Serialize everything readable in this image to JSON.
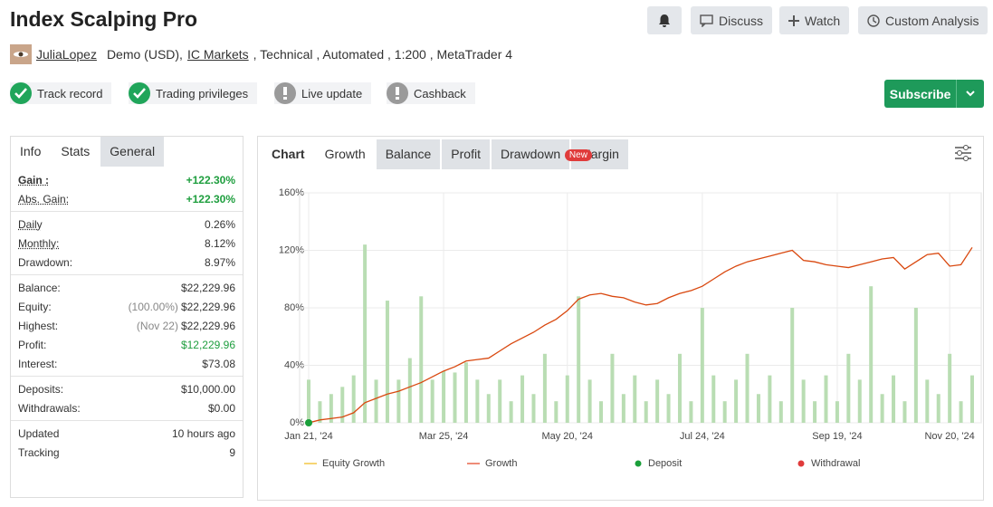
{
  "header": {
    "title": "Index Scalping Pro",
    "buttons": [
      "Discuss",
      "Watch",
      "Custom Analysis"
    ],
    "user": "JuliaLopez",
    "account": "Demo (USD),",
    "broker": "IC Markets",
    "details": ", Technical , Automated , 1:200 , MetaTrader 4"
  },
  "badges": [
    {
      "label": "Track record",
      "ok": true
    },
    {
      "label": "Trading privileges",
      "ok": true
    },
    {
      "label": "Live update",
      "ok": false
    },
    {
      "label": "Cashback",
      "ok": false
    }
  ],
  "subscribe": "Subscribe",
  "stats": {
    "tabs": [
      "Info",
      "Stats",
      "General"
    ],
    "groups": [
      [
        {
          "label": "Gain :",
          "value": "+122.30%",
          "color": "#1e9e3e",
          "strong": true
        },
        {
          "label": "Abs. Gain:",
          "value": "+122.30%",
          "color": "#1e9e3e"
        }
      ],
      [
        {
          "label": "Daily",
          "value": "0.26%"
        },
        {
          "label": "Monthly:",
          "value": "8.12%"
        },
        {
          "label": "Drawdown:",
          "value": "8.97%"
        }
      ],
      [
        {
          "label": "Balance:",
          "value": "$22,229.96"
        },
        {
          "label": "Equity:",
          "note": "(100.00%)",
          "value": "$22,229.96"
        },
        {
          "label": "Highest:",
          "note": "(Nov 22)",
          "value": "$22,229.96"
        },
        {
          "label": "Profit:",
          "value": "$12,229.96",
          "color": "#1e9e3e"
        },
        {
          "label": "Interest:",
          "value": "$73.08"
        }
      ],
      [
        {
          "label": "Deposits:",
          "value": "$10,000.00"
        },
        {
          "label": "Withdrawals:",
          "value": "$0.00"
        }
      ],
      [
        {
          "label": "Updated",
          "value": "10 hours ago"
        },
        {
          "label": "Tracking",
          "value": "9"
        }
      ]
    ]
  },
  "chart_tabs": {
    "tabs": [
      "Chart",
      "Growth",
      "Balance",
      "Profit",
      "Drawdown",
      "Margin"
    ],
    "badge": "New"
  },
  "chart_data": {
    "type": "line",
    "categories": [
      "Jan 21, '24",
      null,
      null,
      null,
      null,
      null,
      null,
      null,
      null,
      null,
      null,
      null,
      "Mar 25, '24",
      null,
      null,
      null,
      null,
      null,
      null,
      null,
      null,
      null,
      null,
      "May 20, '24",
      null,
      null,
      null,
      null,
      null,
      null,
      null,
      null,
      null,
      null,
      null,
      "Jul 24, '24",
      null,
      null,
      null,
      null,
      null,
      null,
      null,
      null,
      null,
      null,
      null,
      "Sep 19, '24",
      null,
      null,
      null,
      null,
      null,
      null,
      null,
      null,
      null,
      "Nov 20, '24",
      null,
      null
    ],
    "series": [
      {
        "name": "Growth",
        "color": "#d9480f",
        "values": [
          0,
          2,
          3,
          4,
          7,
          14,
          17,
          20,
          22,
          25,
          28,
          32,
          36,
          39,
          43,
          44,
          45,
          50,
          55,
          59,
          63,
          68,
          72,
          78,
          86,
          89,
          90,
          88,
          87,
          84,
          82,
          83,
          87,
          90,
          92,
          95,
          100,
          105,
          109,
          112,
          114,
          116,
          118,
          120,
          113,
          112,
          110,
          109,
          108,
          110,
          112,
          114,
          115,
          107,
          112,
          117,
          118,
          109,
          110,
          122
        ]
      },
      {
        "type": "bar",
        "color": "#b9ddb3",
        "values": [
          30,
          15,
          20,
          25,
          33,
          124,
          30,
          85,
          30,
          45,
          88,
          30,
          36,
          35,
          42,
          30,
          20,
          30,
          15,
          33,
          20,
          48,
          15,
          33,
          88,
          30,
          15,
          48,
          20,
          33,
          15,
          30,
          20,
          48,
          15,
          80,
          33,
          15,
          30,
          48,
          20,
          33,
          15,
          80,
          30,
          15,
          33,
          15,
          48,
          30,
          95,
          20,
          33,
          15,
          80,
          30,
          20,
          48,
          15,
          33
        ]
      },
      {
        "name": "Deposit",
        "type": "point",
        "color": "#1a9f3a",
        "values": [
          0,
          null,
          null,
          null,
          null,
          null,
          null,
          null,
          null,
          null,
          null,
          null,
          null,
          null,
          null,
          null,
          null,
          null,
          null,
          null,
          null,
          null,
          null,
          null,
          null,
          null,
          null,
          null,
          null,
          null,
          null,
          null,
          null,
          null,
          null,
          null,
          null,
          null,
          null,
          null,
          null,
          null,
          null,
          null,
          null,
          null,
          null,
          null,
          null,
          null,
          null,
          null,
          null,
          null,
          null,
          null,
          null,
          null,
          null,
          null
        ]
      }
    ],
    "legend": [
      {
        "name": "Equity Growth",
        "color": "#f2c744",
        "marker": "line"
      },
      {
        "name": "Growth",
        "color": "#e8664a",
        "marker": "line"
      },
      {
        "name": "Deposit",
        "color": "#1a9f3a",
        "marker": "dot"
      },
      {
        "name": "Withdrawal",
        "color": "#e03b3b",
        "marker": "dot"
      }
    ],
    "ylim": [
      0,
      160
    ],
    "yticks": [
      {
        "value": 0,
        "label": "0%"
      },
      {
        "value": 40,
        "label": "40%"
      },
      {
        "value": 80,
        "label": "80%"
      },
      {
        "value": 120,
        "label": "120%"
      },
      {
        "value": 160,
        "label": "160%"
      }
    ],
    "grid": true
  }
}
